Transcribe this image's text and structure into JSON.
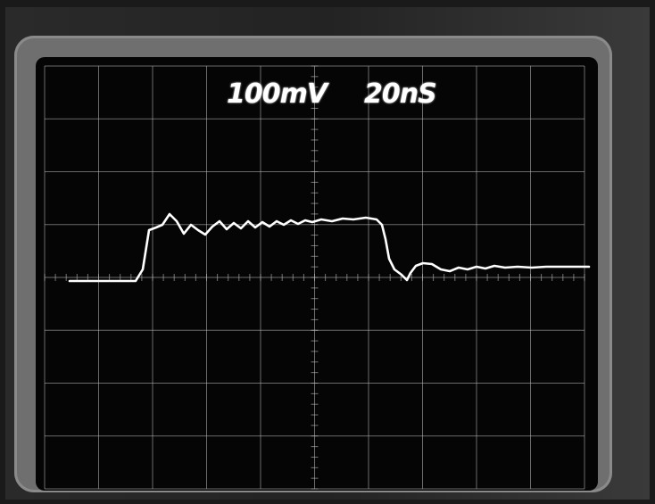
{
  "readout": {
    "volts_per_div": "100mV",
    "time_per_div": "20nS"
  },
  "colors": {
    "screen": "#050505",
    "graticule": "#bdbdbd",
    "trace": "#ffffff",
    "frame": "#6f6f6f",
    "bezel": "#2a2a2a"
  },
  "graticule": {
    "major_divisions_x": 10,
    "major_divisions_y": 8,
    "minor_ticks_per_division": 5
  }
}
